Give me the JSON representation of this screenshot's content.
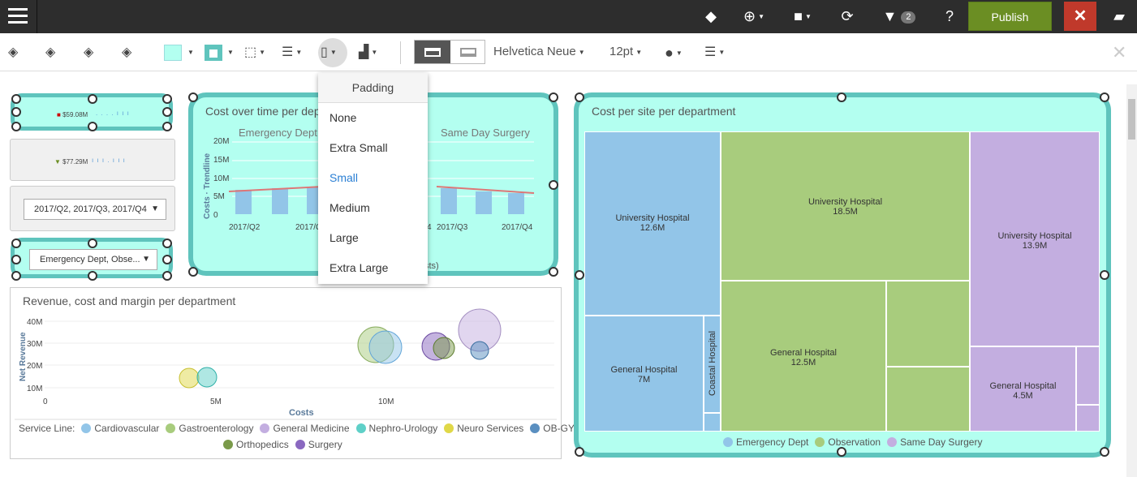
{
  "topbar": {
    "filter_count": "2",
    "publish_label": "Publish",
    "close_label": "✕"
  },
  "toolbar": {
    "font_family": "Helvetica Neue",
    "font_size": "12pt"
  },
  "padding_menu": {
    "header": "Padding",
    "options": [
      "None",
      "Extra Small",
      "Small",
      "Medium",
      "Large",
      "Extra Large"
    ],
    "selected": "Small"
  },
  "kpi1": {
    "value": "$59.08M"
  },
  "kpi2": {
    "value": "$77.29M"
  },
  "filter_quarter": {
    "value": "2017/Q2, 2017/Q3, 2017/Q4"
  },
  "filter_dept": {
    "value": "Emergency Dept, Obse..."
  },
  "chart_cost_time": {
    "title": "Cost over time per dep",
    "panel_labels": [
      "Emergency Dept",
      "Same Day Surgery"
    ],
    "ylabel": "Costs · Trendline",
    "yticks": [
      "20M",
      "15M",
      "10M",
      "5M",
      "0"
    ],
    "xticks": [
      "2017/Q2",
      "2017/Q",
      "4",
      "2017/Q3",
      "2017/Q4"
    ],
    "legend_fragment": "sts)"
  },
  "chart_bubble": {
    "title": "Revenue, cost and margin per department",
    "ylabel": "Net Revenue",
    "xlabel": "Costs",
    "yticks": [
      "40M",
      "30M",
      "20M",
      "10M"
    ],
    "xticks": [
      "0",
      "5M",
      "10M"
    ],
    "legend_title": "Service Line:",
    "legend": [
      {
        "name": "Cardiovascular",
        "color": "#92c5e8"
      },
      {
        "name": "Gastroenterology",
        "color": "#a8cc7d"
      },
      {
        "name": "General Medicine",
        "color": "#c3aee0"
      },
      {
        "name": "Nephro-Urology",
        "color": "#5fd0c8"
      },
      {
        "name": "Neuro Services",
        "color": "#e0d848"
      },
      {
        "name": "OB-GYN",
        "color": "#5a8fc0"
      },
      {
        "name": "Orthopedics",
        "color": "#7a9a4a"
      },
      {
        "name": "Surgery",
        "color": "#8a68c0"
      }
    ]
  },
  "chart_treemap": {
    "title": "Cost per site per department",
    "cells": [
      {
        "name": "University Hospital",
        "value": "12.6M"
      },
      {
        "name": "General Hospital",
        "value": "7M"
      },
      {
        "name": "Coastal Hospital",
        "value": ""
      },
      {
        "name": "University Hospital",
        "value": "18.5M"
      },
      {
        "name": "General Hospital",
        "value": "12.5M"
      },
      {
        "name": "University Hospital",
        "value": "13.9M"
      },
      {
        "name": "General Hospital",
        "value": "4.5M"
      }
    ],
    "legend": [
      {
        "name": "Emergency Dept",
        "color": "#92c5e8"
      },
      {
        "name": "Observation",
        "color": "#a8cc7d"
      },
      {
        "name": "Same Day Surgery",
        "color": "#c3aee0"
      }
    ]
  }
}
